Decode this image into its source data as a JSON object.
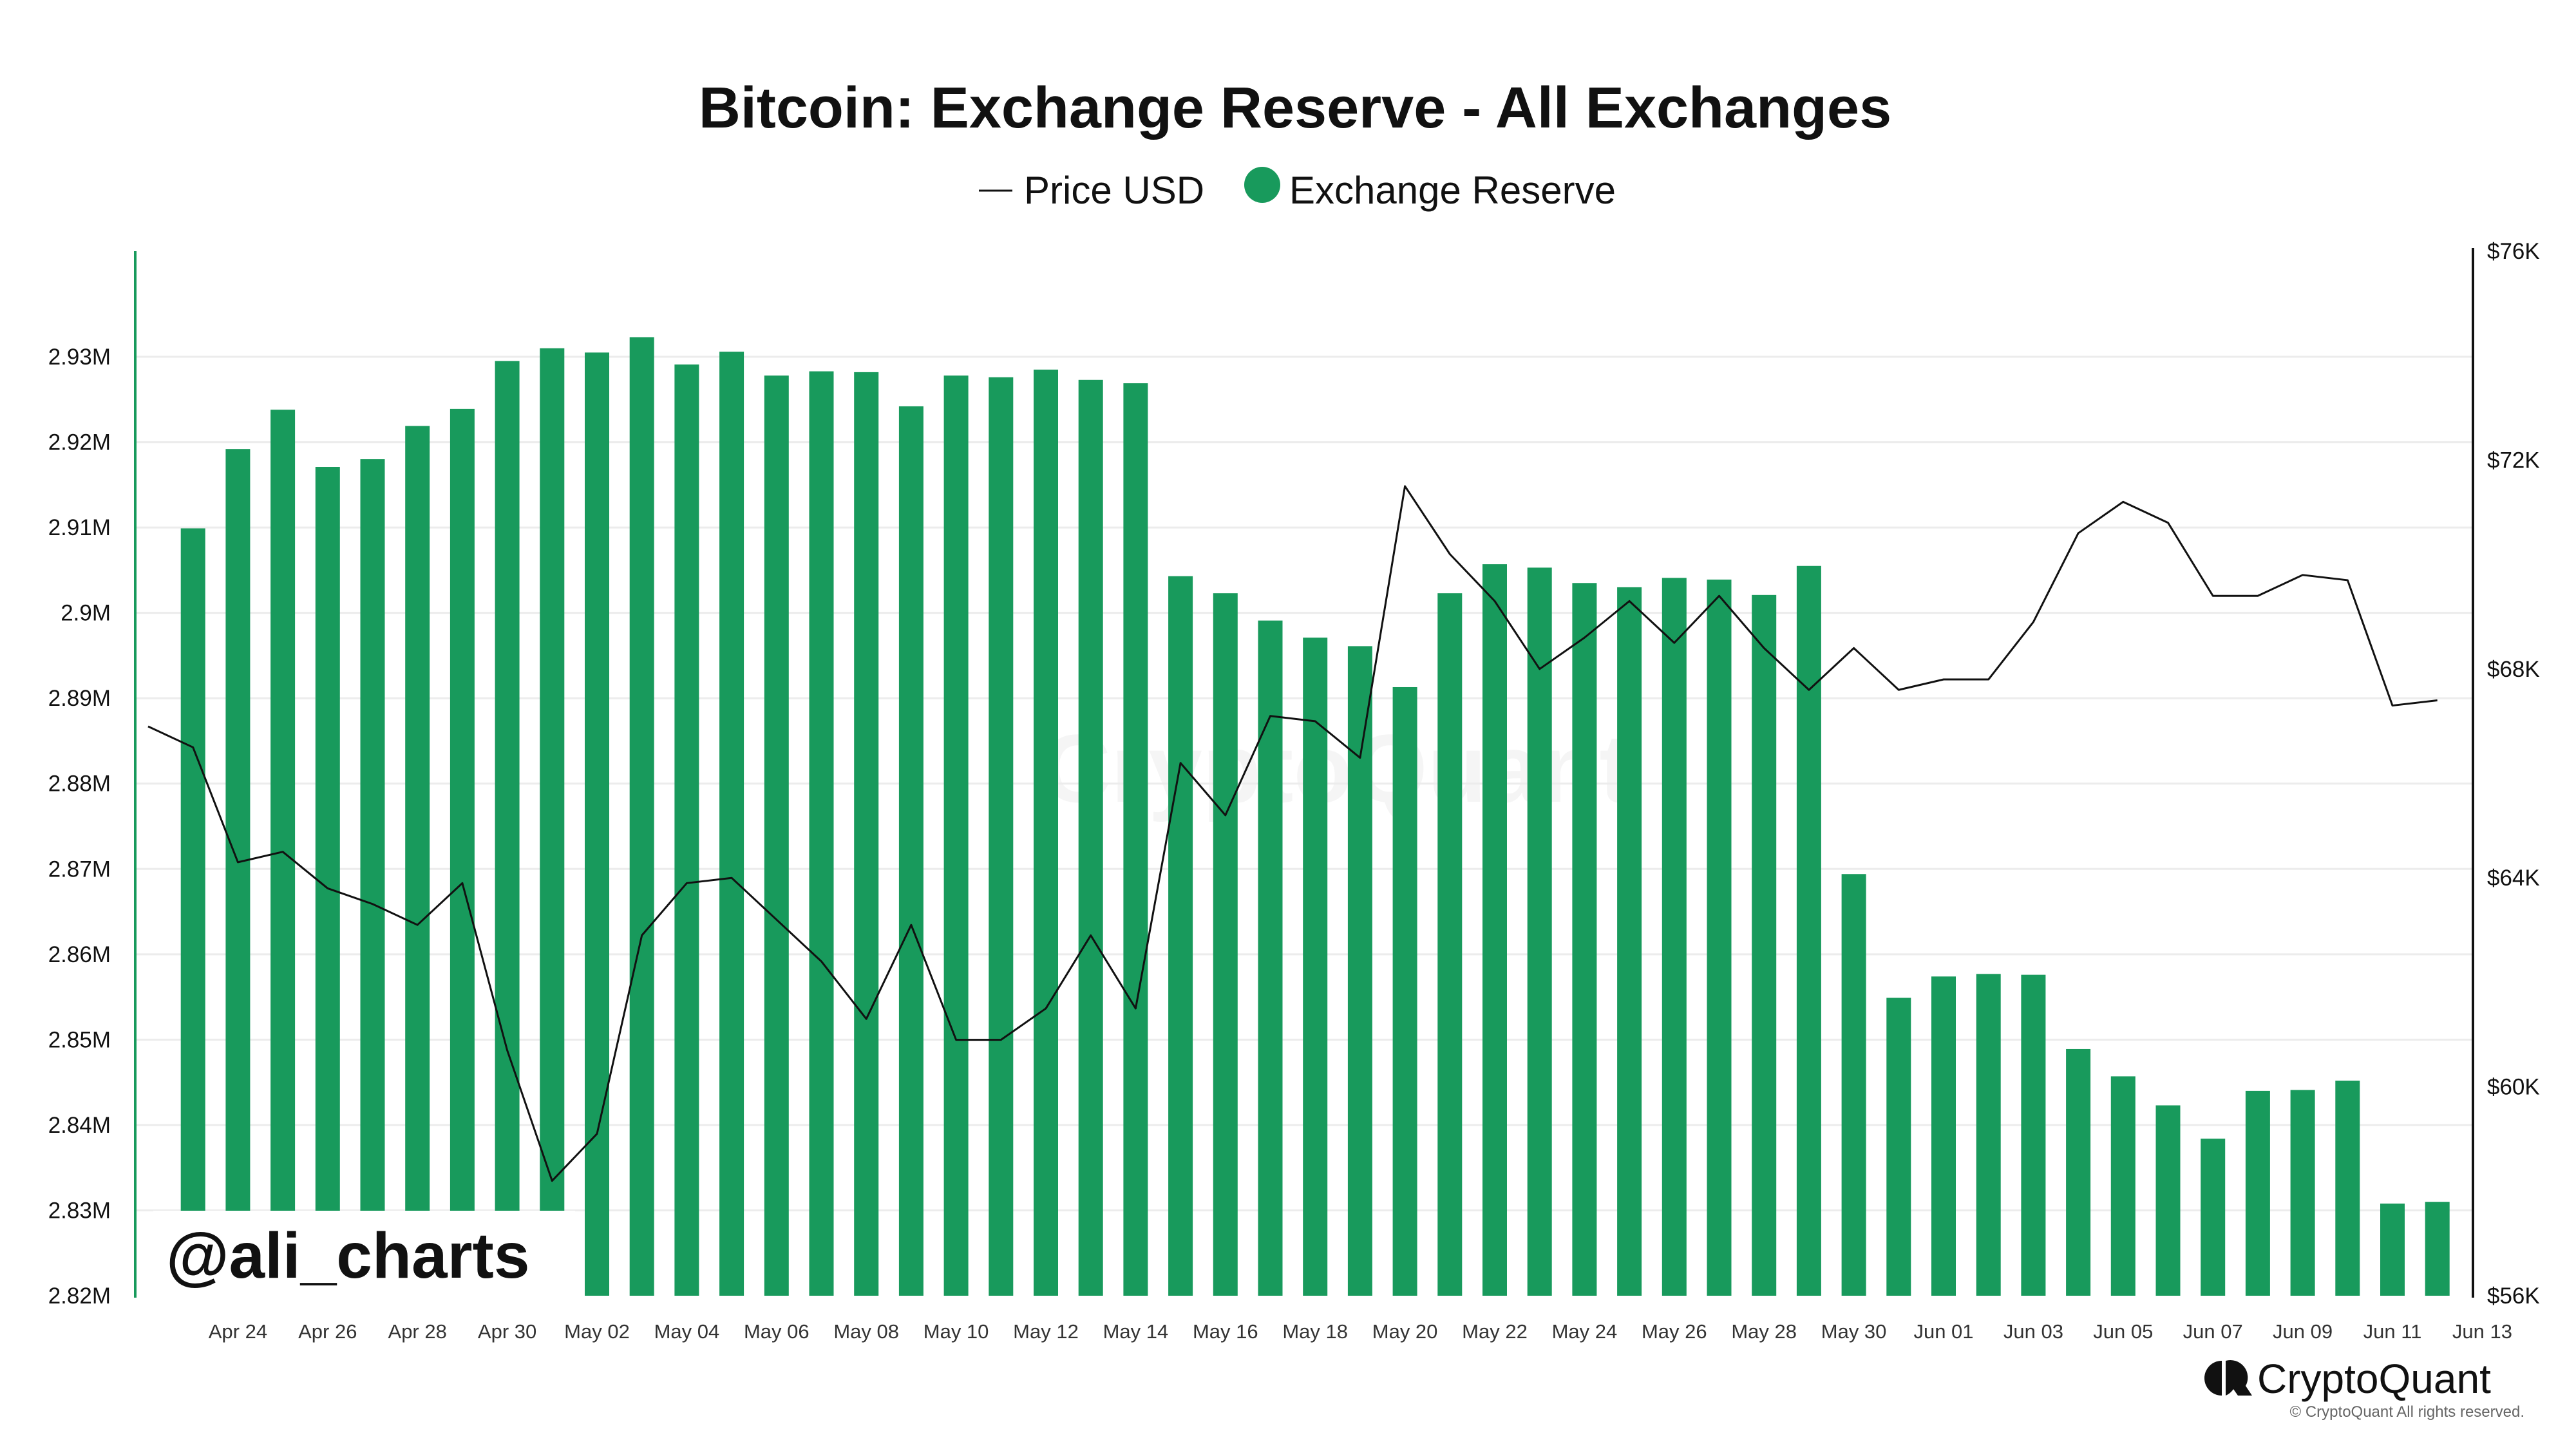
{
  "colors": {
    "bar": "#189A5C",
    "price_line": "#111111",
    "grid": "#ececec",
    "axis_left": "#189A5C",
    "axis_right": "#111111",
    "text": "#111111"
  },
  "footer": {
    "watermark_handle": "@ali_charts",
    "brand_name": "CryptoQuant",
    "brand_icon": "cryptoquant-logo-icon",
    "copyright": "© CryptoQuant All rights reserved."
  },
  "chart_data": {
    "type": "bar",
    "title": "Bitcoin: Exchange Reserve - All Exchanges",
    "legend": [
      {
        "label": "Price USD",
        "marker": "line"
      },
      {
        "label": "Exchange Reserve",
        "marker": "dot"
      }
    ],
    "legend_position": "top-center",
    "grid": true,
    "x_tick_labels": [
      "Apr 24",
      "Apr 26",
      "Apr 28",
      "Apr 30",
      "May 02",
      "May 04",
      "May 06",
      "May 08",
      "May 10",
      "May 12",
      "May 14",
      "May 16",
      "May 18",
      "May 20",
      "May 22",
      "May 24",
      "May 26",
      "May 28",
      "May 30",
      "Jun 01",
      "Jun 03",
      "Jun 05",
      "Jun 07",
      "Jun 09",
      "Jun 11",
      "Jun 13"
    ],
    "y_left": {
      "ylim": [
        2.82,
        2.938
      ],
      "ticks": [
        {
          "value": 2.82,
          "label": "2.82M"
        },
        {
          "value": 2.83,
          "label": "2.83M"
        },
        {
          "value": 2.84,
          "label": "2.84M"
        },
        {
          "value": 2.85,
          "label": "2.85M"
        },
        {
          "value": 2.86,
          "label": "2.86M"
        },
        {
          "value": 2.87,
          "label": "2.87M"
        },
        {
          "value": 2.88,
          "label": "2.88M"
        },
        {
          "value": 2.89,
          "label": "2.89M"
        },
        {
          "value": 2.9,
          "label": "2.9M"
        },
        {
          "value": 2.91,
          "label": "2.91M"
        },
        {
          "value": 2.92,
          "label": "2.92M"
        },
        {
          "value": 2.93,
          "label": "2.93M"
        }
      ]
    },
    "y_right": {
      "ylim": [
        56000,
        76000
      ],
      "ticks": [
        {
          "value": 56000,
          "label": "$56K"
        },
        {
          "value": 60000,
          "label": "$60K"
        },
        {
          "value": 64000,
          "label": "$64K"
        },
        {
          "value": 68000,
          "label": "$68K"
        },
        {
          "value": 72000,
          "label": "$72K"
        },
        {
          "value": 76000,
          "label": "$76K"
        }
      ]
    },
    "series": [
      {
        "name": "Exchange Reserve",
        "axis": "left",
        "x": [
          "2024-04-23",
          "2024-04-24",
          "2024-04-25",
          "2024-04-26",
          "2024-04-27",
          "2024-04-28",
          "2024-04-29",
          "2024-04-30",
          "2024-05-01",
          "2024-05-02",
          "2024-05-03",
          "2024-05-04",
          "2024-05-05",
          "2024-05-06",
          "2024-05-07",
          "2024-05-08",
          "2024-05-09",
          "2024-05-10",
          "2024-05-11",
          "2024-05-12",
          "2024-05-13",
          "2024-05-14",
          "2024-05-15",
          "2024-05-16",
          "2024-05-17",
          "2024-05-18",
          "2024-05-19",
          "2024-05-20",
          "2024-05-21",
          "2024-05-22",
          "2024-05-23",
          "2024-05-24",
          "2024-05-25",
          "2024-05-26",
          "2024-05-27",
          "2024-05-28",
          "2024-05-29",
          "2024-05-30",
          "2024-05-31",
          "2024-06-01",
          "2024-06-02",
          "2024-06-03",
          "2024-06-04",
          "2024-06-05",
          "2024-06-06",
          "2024-06-07",
          "2024-06-08",
          "2024-06-09",
          "2024-06-10",
          "2024-06-11",
          "2024-06-12",
          "2024-06-13"
        ],
        "values": [
          2.9099,
          2.9192,
          2.9238,
          2.9171,
          2.918,
          2.9219,
          2.9239,
          2.9295,
          2.931,
          2.9305,
          2.9323,
          2.9291,
          2.9306,
          2.9278,
          2.9283,
          2.9282,
          2.9242,
          2.9278,
          2.9276,
          2.9285,
          2.9273,
          2.9269,
          2.9043,
          2.9023,
          2.8991,
          2.8971,
          2.8961,
          2.8913,
          2.9023,
          2.9057,
          2.9053,
          2.9035,
          2.903,
          2.9041,
          2.9039,
          2.9021,
          2.9055,
          2.8694,
          2.8549,
          2.8574,
          2.8577,
          2.8576,
          2.8489,
          2.8457,
          2.8423,
          2.8384,
          2.844,
          2.8441,
          2.8452,
          2.8308,
          2.831,
          null
        ]
      },
      {
        "name": "Price USD",
        "axis": "right",
        "x": [
          "2024-04-22",
          "2024-04-23",
          "2024-04-24",
          "2024-04-25",
          "2024-04-26",
          "2024-04-27",
          "2024-04-28",
          "2024-04-29",
          "2024-04-30",
          "2024-05-01",
          "2024-05-02",
          "2024-05-03",
          "2024-05-04",
          "2024-05-05",
          "2024-05-06",
          "2024-05-07",
          "2024-05-08",
          "2024-05-09",
          "2024-05-10",
          "2024-05-11",
          "2024-05-12",
          "2024-05-13",
          "2024-05-14",
          "2024-05-15",
          "2024-05-16",
          "2024-05-17",
          "2024-05-18",
          "2024-05-19",
          "2024-05-20",
          "2024-05-21",
          "2024-05-22",
          "2024-05-23",
          "2024-05-24",
          "2024-05-25",
          "2024-05-26",
          "2024-05-27",
          "2024-05-28",
          "2024-05-29",
          "2024-05-30",
          "2024-05-31",
          "2024-06-01",
          "2024-06-02",
          "2024-06-03",
          "2024-06-04",
          "2024-06-05",
          "2024-06-06",
          "2024-06-07",
          "2024-06-08",
          "2024-06-09",
          "2024-06-10",
          "2024-06-11",
          "2024-06-12"
        ],
        "values": [
          66900,
          66500,
          64300,
          64500,
          63800,
          63500,
          63100,
          63900,
          60700,
          58200,
          59100,
          62900,
          63900,
          64000,
          63200,
          62400,
          61300,
          63100,
          60900,
          60900,
          61500,
          62900,
          61500,
          66200,
          65200,
          67100,
          67000,
          66300,
          71500,
          70200,
          69300,
          68000,
          68600,
          69300,
          68500,
          69400,
          68400,
          67600,
          68400,
          67600,
          67800,
          67800,
          68900,
          70600,
          71200,
          70800,
          69400,
          69400,
          69800,
          69700,
          67300,
          67400
        ]
      }
    ]
  }
}
